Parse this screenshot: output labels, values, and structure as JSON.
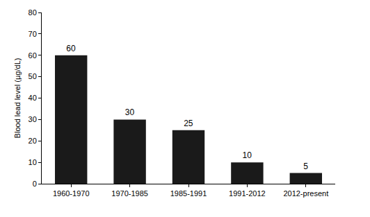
{
  "chart_data": {
    "type": "bar",
    "categories": [
      "1960-1970",
      "1970-1985",
      "1985-1991",
      "1991-2012",
      "2012-present"
    ],
    "values": [
      60,
      30,
      25,
      10,
      5
    ],
    "color": "#1a1a1a",
    "ylabel": "Blood lead level (µg/dL)",
    "ylim": [
      0,
      80
    ],
    "yticks": [
      0,
      10,
      20,
      30,
      40,
      50,
      60,
      70,
      80
    ],
    "grid": false,
    "data_labels": true
  }
}
